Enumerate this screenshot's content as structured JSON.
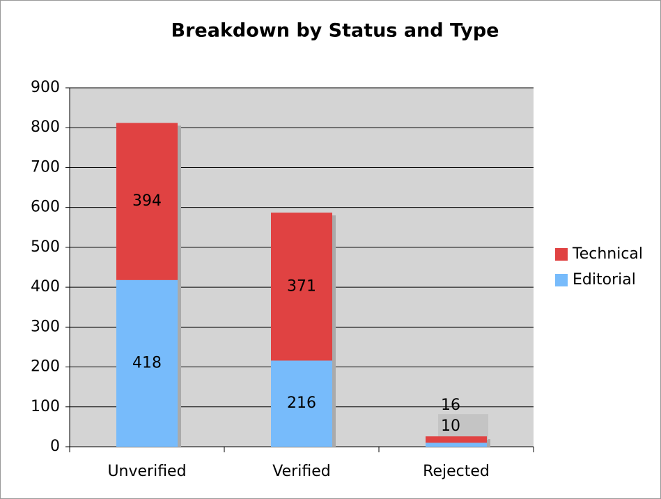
{
  "chart_data": {
    "type": "stacked_bar",
    "title": "Breakdown by Status and Type",
    "categories": [
      "Unverified",
      "Verified",
      "Rejected"
    ],
    "series": [
      {
        "name": "Editorial",
        "color": "#77bbfb",
        "values": [
          418,
          216,
          10
        ]
      },
      {
        "name": "Technical",
        "color": "#e04242",
        "values": [
          394,
          371,
          16
        ]
      }
    ],
    "ylim": [
      0,
      900
    ],
    "yticks": [
      0,
      100,
      200,
      300,
      400,
      500,
      600,
      700,
      800,
      900
    ],
    "grid": true,
    "legend": "right"
  }
}
